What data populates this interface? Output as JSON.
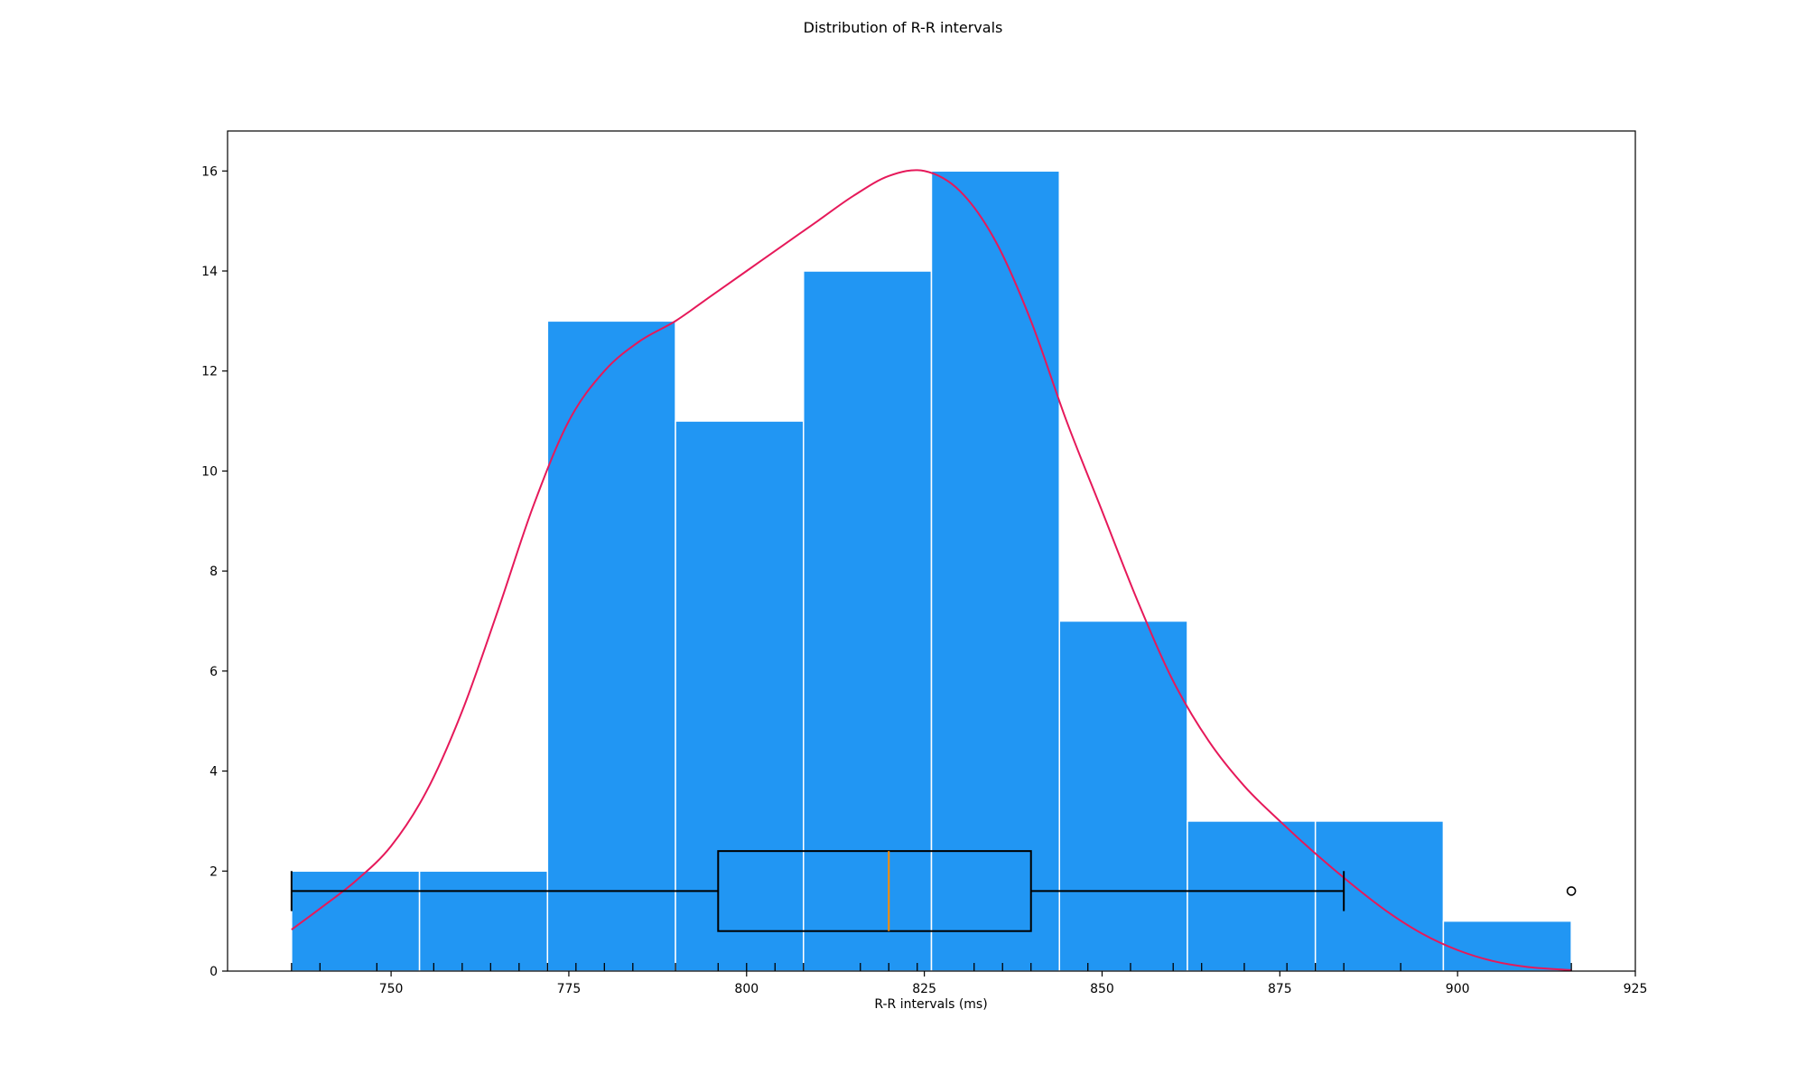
{
  "chart_data": {
    "type": "bar",
    "title": "Distribution of R-R intervals",
    "xlabel": "R-R intervals (ms)",
    "ylabel": "",
    "xlim": [
      727,
      925
    ],
    "ylim": [
      0,
      16.8
    ],
    "xticks": [
      750,
      775,
      800,
      825,
      850,
      875,
      900,
      925
    ],
    "yticks": [
      0,
      2,
      4,
      6,
      8,
      10,
      12,
      14,
      16
    ],
    "grid": false,
    "colors": {
      "bars": "#2196f3",
      "bar_edge": "#ffffff",
      "kde": "#e6195a",
      "box": "#000000",
      "median": "#ff8c00"
    },
    "histogram": {
      "bin_edges": [
        736,
        754,
        772,
        790,
        808,
        826,
        844,
        862,
        880,
        898,
        916
      ],
      "counts": [
        2,
        2,
        13,
        11,
        14,
        16,
        7,
        3,
        3,
        1
      ]
    },
    "kde": {
      "x": [
        736,
        740,
        745,
        750,
        755,
        760,
        765,
        770,
        775,
        780,
        785,
        790,
        795,
        800,
        805,
        810,
        815,
        820,
        825,
        830,
        835,
        840,
        845,
        850,
        855,
        860,
        865,
        870,
        875,
        880,
        885,
        890,
        895,
        900,
        905,
        910,
        916
      ],
      "y": [
        0.83,
        1.25,
        1.8,
        2.5,
        3.6,
        5.2,
        7.2,
        9.3,
        11.0,
        12.0,
        12.6,
        13.0,
        13.5,
        14.0,
        14.5,
        15.0,
        15.5,
        15.9,
        16.0,
        15.6,
        14.6,
        13.0,
        11.0,
        9.2,
        7.4,
        5.8,
        4.6,
        3.7,
        3.0,
        2.35,
        1.75,
        1.2,
        0.75,
        0.42,
        0.2,
        0.08,
        0.02
      ]
    },
    "boxplot": {
      "whisker_low": 736,
      "q1": 796,
      "median": 820,
      "q3": 840,
      "whisker_high": 884,
      "outliers": [
        916
      ],
      "y_center": 1.6,
      "y_bottom": 0.8,
      "y_top": 2.4,
      "cap_bottom": 1.2,
      "cap_top": 2.0
    },
    "rug": [
      736,
      740,
      748,
      756,
      760,
      764,
      768,
      772,
      776,
      780,
      784,
      790,
      796,
      800,
      804,
      808,
      816,
      820,
      824,
      832,
      836,
      840,
      848,
      854,
      860,
      864,
      870,
      876,
      880,
      884,
      892,
      916
    ]
  }
}
